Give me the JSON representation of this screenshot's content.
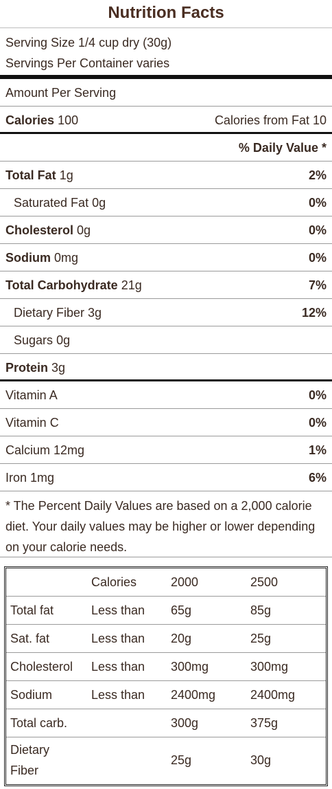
{
  "title": "Nutrition Facts",
  "serving": {
    "size": "Serving Size 1/4 cup dry (30g)",
    "per_container": "Servings Per Container varies"
  },
  "amount_per_serving": "Amount Per Serving",
  "calories": {
    "label": "Calories",
    "value": "100",
    "from_fat": "Calories from Fat 10"
  },
  "daily_value_header": "% Daily Value *",
  "nutrients": [
    {
      "name": "Total Fat",
      "amount": "1g",
      "dv": "2%"
    },
    {
      "name": "Saturated Fat",
      "amount": "0g",
      "dv": "0%"
    },
    {
      "name": "Cholesterol",
      "amount": "0g",
      "dv": "0%"
    },
    {
      "name": "Sodium",
      "amount": "0mg",
      "dv": "0%"
    },
    {
      "name": "Total Carbohydrate",
      "amount": "21g",
      "dv": "7%"
    },
    {
      "name": "Dietary Fiber",
      "amount": "3g",
      "dv": "12%"
    },
    {
      "name": "Sugars",
      "amount": "0g",
      "dv": ""
    },
    {
      "name": "Protein",
      "amount": "3g",
      "dv": ""
    }
  ],
  "vitamins": [
    {
      "name": "Vitamin A",
      "dv": "0%"
    },
    {
      "name": "Vitamin C",
      "dv": "0%"
    },
    {
      "name": "Calcium",
      "amount": "12mg",
      "dv": "1%"
    },
    {
      "name": "Iron",
      "amount": "1mg",
      "dv": "6%"
    }
  ],
  "footnote": "* The Percent Daily Values are based on a 2,000 calorie diet. Your daily values may be higher or lower depending on your calorie needs.",
  "dv_table": {
    "header": [
      "",
      "Calories",
      "2000",
      "2500"
    ],
    "rows": [
      [
        "Total fat",
        "Less than",
        "65g",
        "85g"
      ],
      [
        "Sat. fat",
        "Less than",
        "20g",
        "25g"
      ],
      [
        "Cholesterol",
        "Less than",
        "300mg",
        "300mg"
      ],
      [
        "Sodium",
        "Less than",
        "2400mg",
        "2400mg"
      ],
      [
        "Total carb.",
        "",
        "300g",
        "375g"
      ],
      [
        "Dietary Fiber",
        "",
        "25g",
        "30g"
      ]
    ]
  }
}
